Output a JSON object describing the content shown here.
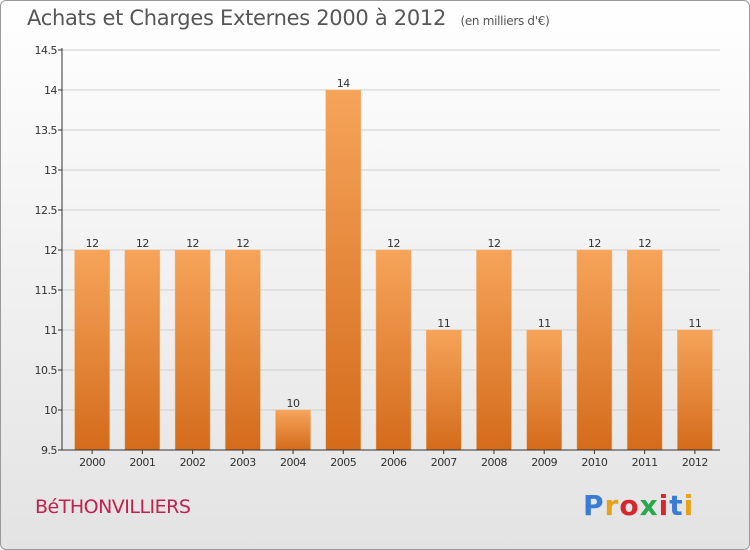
{
  "header": {
    "title": "Achats et Charges Externes 2000 à 2012",
    "subtitle": "(en milliers d'€)"
  },
  "footer": {
    "commune": "BéTHONVILLIERS",
    "logo_text": "Proxiti",
    "logo_colors": [
      "#3a7bd5",
      "#e8a21a",
      "#d6272f",
      "#2aa84a",
      "#d6272f",
      "#3a7bd5",
      "#e8a21a"
    ]
  },
  "colors": {
    "bar_top": "#f6a45a",
    "bar_bottom": "#d46b1b",
    "axis": "#333333",
    "grid": "#cfcfcf",
    "text": "#333333"
  },
  "chart_data": {
    "type": "bar",
    "categories": [
      "2000",
      "2001",
      "2002",
      "2003",
      "2004",
      "2005",
      "2006",
      "2007",
      "2008",
      "2009",
      "2010",
      "2011",
      "2012"
    ],
    "values": [
      12,
      12,
      12,
      12,
      10,
      14,
      12,
      11,
      12,
      11,
      12,
      12,
      11
    ],
    "data_labels": [
      "12",
      "12",
      "12",
      "12",
      "10",
      "14",
      "12",
      "11",
      "12",
      "11",
      "12",
      "12",
      "11"
    ],
    "ylim": [
      9.5,
      14.5
    ],
    "yticks": [
      9.5,
      10,
      10.5,
      11,
      11.5,
      12,
      12.5,
      13,
      13.5,
      14,
      14.5
    ],
    "ytick_labels": [
      "9.5",
      "10",
      "10.5",
      "11",
      "11.5",
      "12",
      "12.5",
      "13",
      "13.5",
      "14",
      "14.5"
    ],
    "grid": true,
    "xlabel": "",
    "ylabel": ""
  }
}
